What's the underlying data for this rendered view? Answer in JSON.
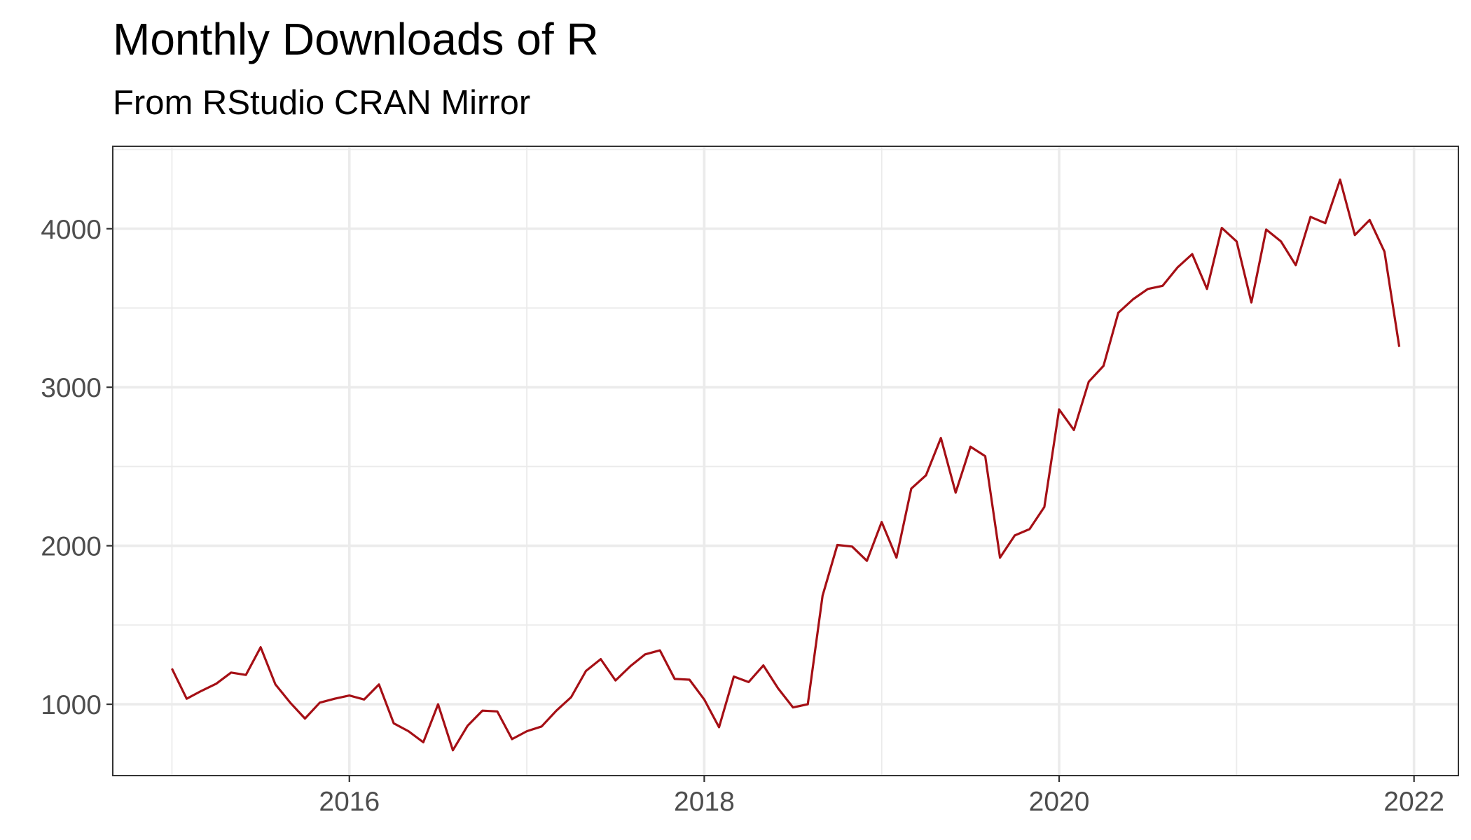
{
  "chart_data": {
    "type": "line",
    "title": "Monthly Downloads of R",
    "subtitle": "From RStudio CRAN Mirror",
    "xlabel": "",
    "ylabel": "",
    "xlim": [
      "2014-09-01",
      "2022-04-01"
    ],
    "ylim": [
      550,
      4520
    ],
    "x_ticks": [
      "2016",
      "2018",
      "2020",
      "2022"
    ],
    "y_ticks": [
      1000,
      2000,
      3000,
      4000
    ],
    "grid": true,
    "legend": "none",
    "colors": {
      "series": "#a50f15"
    },
    "series": [
      {
        "x": [
          "2015-01",
          "2015-02",
          "2015-03",
          "2015-04",
          "2015-05",
          "2015-06",
          "2015-07",
          "2015-08",
          "2015-09",
          "2015-10",
          "2015-11",
          "2015-12",
          "2016-01",
          "2016-02",
          "2016-03",
          "2016-04",
          "2016-05",
          "2016-06",
          "2016-07",
          "2016-08",
          "2016-09",
          "2016-10",
          "2016-11",
          "2016-12",
          "2017-01",
          "2017-02",
          "2017-03",
          "2017-04",
          "2017-05",
          "2017-06",
          "2017-07",
          "2017-08",
          "2017-09",
          "2017-10",
          "2017-11",
          "2017-12",
          "2018-01",
          "2018-02",
          "2018-03",
          "2018-04",
          "2018-05",
          "2018-06",
          "2018-07",
          "2018-08",
          "2018-09",
          "2018-10",
          "2018-11",
          "2018-12",
          "2019-01",
          "2019-02",
          "2019-03",
          "2019-04",
          "2019-05",
          "2019-06",
          "2019-07",
          "2019-08",
          "2019-09",
          "2019-10",
          "2019-11",
          "2019-12",
          "2020-01",
          "2020-02",
          "2020-03",
          "2020-04",
          "2020-05",
          "2020-06",
          "2020-07",
          "2020-08",
          "2020-09",
          "2020-10",
          "2020-11",
          "2020-12",
          "2021-01",
          "2021-02",
          "2021-03",
          "2021-04",
          "2021-05",
          "2021-06",
          "2021-07",
          "2021-08",
          "2021-09",
          "2021-10",
          "2021-11",
          "2021-12"
        ],
        "y": [
          1225,
          1035,
          1085,
          1130,
          1200,
          1185,
          1360,
          1125,
          1010,
          910,
          1010,
          1035,
          1055,
          1030,
          1125,
          880,
          830,
          760,
          1000,
          710,
          865,
          960,
          955,
          780,
          830,
          860,
          960,
          1045,
          1210,
          1285,
          1150,
          1240,
          1315,
          1340,
          1160,
          1155,
          1030,
          855,
          1175,
          1140,
          1245,
          1100,
          980,
          1000,
          1685,
          2005,
          1995,
          1905,
          2150,
          1925,
          2360,
          2445,
          2680,
          2335,
          2625,
          2565,
          1925,
          2065,
          2105,
          2245,
          2860,
          2730,
          3035,
          3135,
          3470,
          3555,
          3620,
          3640,
          3755,
          3840,
          3620,
          4005,
          3920,
          3535,
          3995,
          3920,
          3770,
          4075,
          4035,
          4310,
          3960,
          4055,
          3855,
          3255
        ]
      }
    ]
  }
}
